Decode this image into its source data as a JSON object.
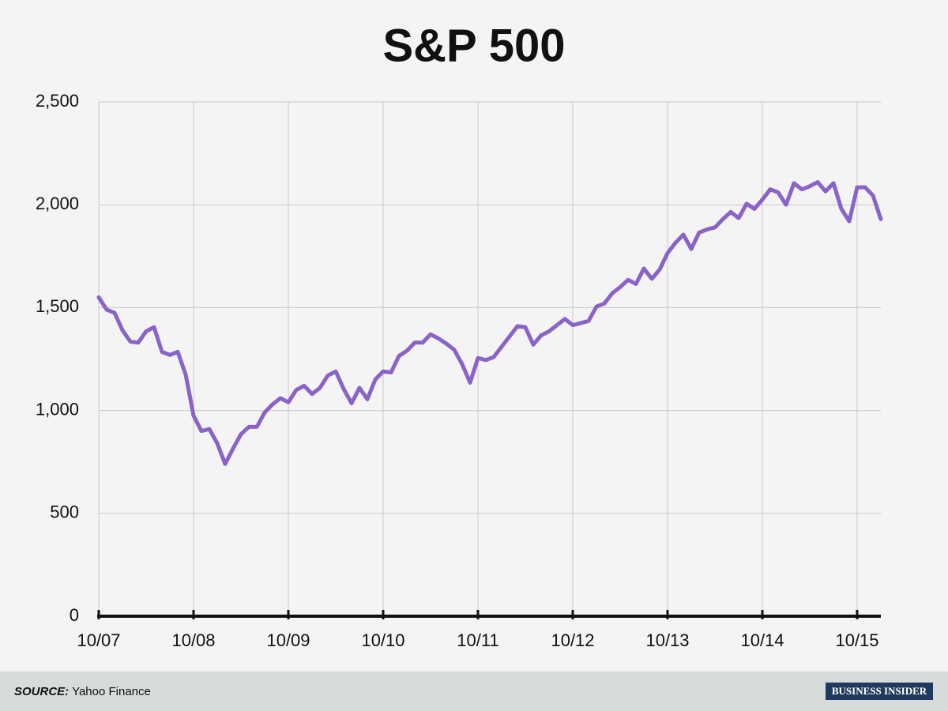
{
  "chart_data": {
    "type": "line",
    "title": "S&P 500",
    "categories": [
      "10/07",
      null,
      null,
      null,
      null,
      null,
      null,
      null,
      null,
      null,
      null,
      null,
      "10/08",
      null,
      null,
      null,
      null,
      null,
      null,
      null,
      null,
      null,
      null,
      null,
      "10/09",
      null,
      null,
      null,
      null,
      null,
      null,
      null,
      null,
      null,
      null,
      null,
      "10/10",
      null,
      null,
      null,
      null,
      null,
      null,
      null,
      null,
      null,
      null,
      null,
      "10/11",
      null,
      null,
      null,
      null,
      null,
      null,
      null,
      null,
      null,
      null,
      null,
      "10/12",
      null,
      null,
      null,
      null,
      null,
      null,
      null,
      null,
      null,
      null,
      null,
      "10/13",
      null,
      null,
      null,
      null,
      null,
      null,
      null,
      null,
      null,
      null,
      null,
      "10/14",
      null,
      null,
      null,
      null,
      null,
      null,
      null,
      null,
      null,
      null,
      null,
      "10/15",
      null,
      null,
      null
    ],
    "series": [
      {
        "name": "S&P 500",
        "color": "#8a63c9",
        "values": [
          1550,
          1490,
          1475,
          1390,
          1335,
          1330,
          1385,
          1405,
          1285,
          1270,
          1285,
          1175,
          975,
          900,
          910,
          840,
          740,
          815,
          885,
          920,
          920,
          990,
          1030,
          1060,
          1040,
          1100,
          1120,
          1080,
          1110,
          1170,
          1190,
          1105,
          1035,
          1110,
          1055,
          1150,
          1190,
          1185,
          1265,
          1290,
          1330,
          1330,
          1370,
          1350,
          1325,
          1295,
          1225,
          1135,
          1255,
          1245,
          1260,
          1310,
          1360,
          1410,
          1405,
          1320,
          1365,
          1385,
          1415,
          1445,
          1415,
          1425,
          1435,
          1505,
          1520,
          1570,
          1600,
          1635,
          1615,
          1690,
          1640,
          1685,
          1765,
          1815,
          1855,
          1785,
          1865,
          1880,
          1890,
          1930,
          1965,
          1935,
          2005,
          1980,
          2025,
          2075,
          2060,
          2000,
          2105,
          2075,
          2090,
          2110,
          2065,
          2105,
          1980,
          1920,
          2085,
          2085,
          2045,
          1930
        ]
      }
    ],
    "ylim": [
      0,
      2500
    ],
    "yticks": [
      0,
      500,
      {
        "value": 1000,
        "label": "1,000"
      },
      {
        "value": 1500,
        "label": "1,500"
      },
      {
        "value": 2000,
        "label": "2,000"
      },
      {
        "value": 2500,
        "label": "2,500"
      }
    ],
    "grid": true
  },
  "footer": {
    "source_label": "SOURCE:",
    "source": "Yahoo Finance",
    "logo": "BUSINESS INSIDER"
  }
}
